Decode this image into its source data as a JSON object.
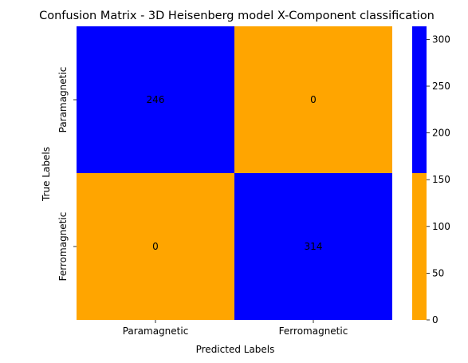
{
  "chart_data": {
    "type": "heatmap",
    "title": "Confusion Matrix - 3D Heisenberg model X-Component classification",
    "xlabel": "Predicted Labels",
    "ylabel": "True Labels",
    "x_categories": [
      "Paramagnetic",
      "Ferromagnetic"
    ],
    "y_categories": [
      "Paramagnetic",
      "Ferromagnetic"
    ],
    "values": [
      [
        246,
        0
      ],
      [
        0,
        314
      ]
    ],
    "colorbar": {
      "ticks": [
        0,
        50,
        100,
        150,
        200,
        250,
        300
      ],
      "range": [
        0,
        314
      ],
      "threshold": 157,
      "low_color": "#FFA500",
      "high_color": "#0000FF"
    },
    "cell_label_colors": {
      "on_low": "#262626",
      "on_high": "#ffffff"
    },
    "grid": false
  }
}
